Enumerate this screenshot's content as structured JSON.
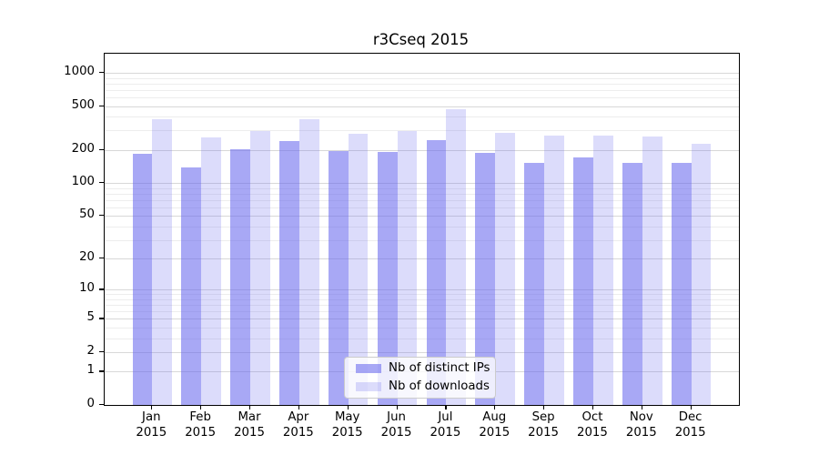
{
  "title": "r3Cseq 2015",
  "legend": {
    "items": [
      {
        "label": "Nb of distinct IPs"
      },
      {
        "label": "Nb of downloads"
      }
    ]
  },
  "colors": {
    "bar_base": "#6666ee",
    "ips_alpha": 0.57,
    "downloads_alpha": 0.23,
    "grid_major": "#d8d8d8",
    "grid_minor": "#ededed",
    "axis": "#000000",
    "legend_border": "#cccccc"
  },
  "chart_data": {
    "type": "bar",
    "title": "r3Cseq 2015",
    "categories": [
      "Jan 2015",
      "Feb 2015",
      "Mar 2015",
      "Apr 2015",
      "May 2015",
      "Jun 2015",
      "Jul 2015",
      "Aug 2015",
      "Sep 2015",
      "Oct 2015",
      "Nov 2015",
      "Dec 2015"
    ],
    "series": [
      {
        "name": "Nb of distinct IPs",
        "color": "#6666ee",
        "alpha": 0.57,
        "values": [
          185,
          140,
          205,
          240,
          196,
          193,
          247,
          187,
          154,
          172,
          154,
          152
        ]
      },
      {
        "name": "Nb of downloads",
        "color": "#6666ee",
        "alpha": 0.23,
        "values": [
          380,
          260,
          297,
          380,
          281,
          296,
          471,
          285,
          272,
          269,
          266,
          229
        ]
      }
    ],
    "xlabel": "",
    "ylabel": "",
    "y_axis": {
      "scale": "log1p",
      "major_ticks": [
        0,
        1,
        2,
        5,
        10,
        20,
        50,
        100,
        200,
        500,
        1000
      ],
      "minor_ticks": [
        3,
        4,
        6,
        7,
        8,
        9,
        30,
        40,
        60,
        70,
        80,
        90,
        300,
        400,
        600,
        700,
        800,
        900
      ],
      "ylim": [
        0,
        1500
      ]
    },
    "grid": true,
    "legend_position": "lower-center"
  }
}
